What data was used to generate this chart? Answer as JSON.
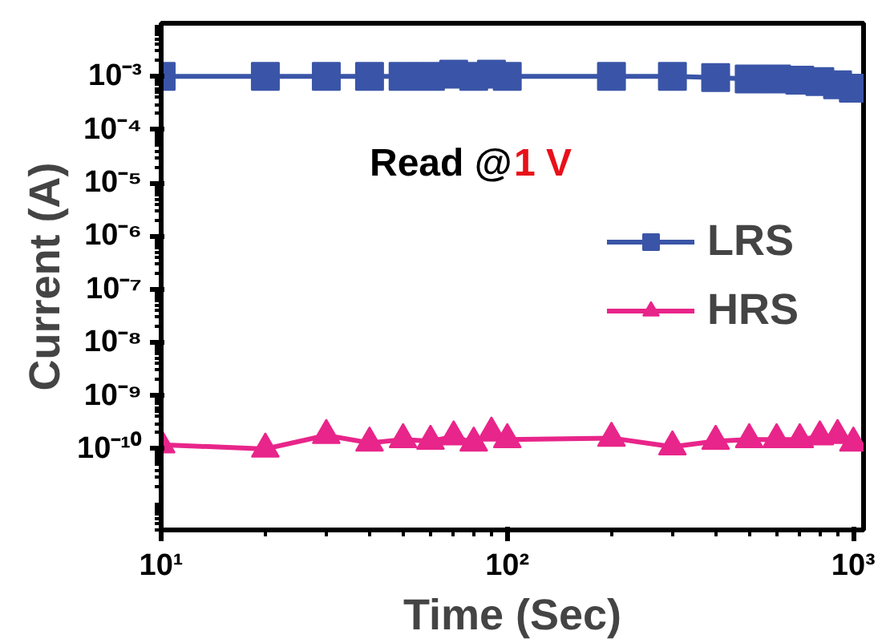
{
  "chart_data": {
    "type": "line",
    "xlabel": "Time (Sec)",
    "ylabel": "Current (A)",
    "log": "xy",
    "grid": false,
    "legend": "right",
    "annotations": [
      "Read @",
      "1 V"
    ],
    "xlim": [
      10,
      1070
    ],
    "xticks": [
      {
        "value": 10,
        "label": "10¹"
      },
      {
        "value": 100,
        "label": "10²"
      },
      {
        "value": 1000,
        "label": "10³"
      }
    ],
    "ylim": [
      3e-12,
      0.01
    ],
    "yticks": [
      {
        "value": 1e-10,
        "label": "10⁻¹⁰"
      },
      {
        "value": 1e-09,
        "label": "10⁻⁹"
      },
      {
        "value": 1e-08,
        "label": "10⁻⁸"
      },
      {
        "value": 1e-07,
        "label": "10⁻⁷"
      },
      {
        "value": 1e-06,
        "label": "10⁻⁶"
      },
      {
        "value": 1e-05,
        "label": "10⁻⁵"
      },
      {
        "value": 0.0001,
        "label": "10⁻⁴"
      },
      {
        "value": 0.001,
        "label": "10⁻³"
      }
    ],
    "x": [
      10,
      20,
      30,
      40,
      50,
      60,
      70,
      80,
      90,
      100,
      200,
      300,
      400,
      500,
      600,
      700,
      800,
      900,
      1000
    ],
    "series": [
      {
        "name": "LRS",
        "color": "#3a55a8",
        "marker": "square",
        "values": [
          0.001,
          0.001,
          0.001,
          0.001,
          0.001,
          0.001,
          0.0011,
          0.001,
          0.0011,
          0.001,
          0.001,
          0.001,
          0.00095,
          0.0009,
          0.0009,
          0.00085,
          0.0008,
          0.0007,
          0.0006
        ]
      },
      {
        "name": "HRS",
        "color": "#e8258a",
        "marker": "triangle",
        "values": [
          1.2e-10,
          1e-10,
          1.8e-10,
          1.3e-10,
          1.5e-10,
          1.4e-10,
          1.7e-10,
          1.3e-10,
          2e-10,
          1.5e-10,
          1.6e-10,
          1.1e-10,
          1.4e-10,
          1.5e-10,
          1.5e-10,
          1.5e-10,
          1.7e-10,
          1.8e-10,
          1.3e-10
        ]
      }
    ]
  }
}
